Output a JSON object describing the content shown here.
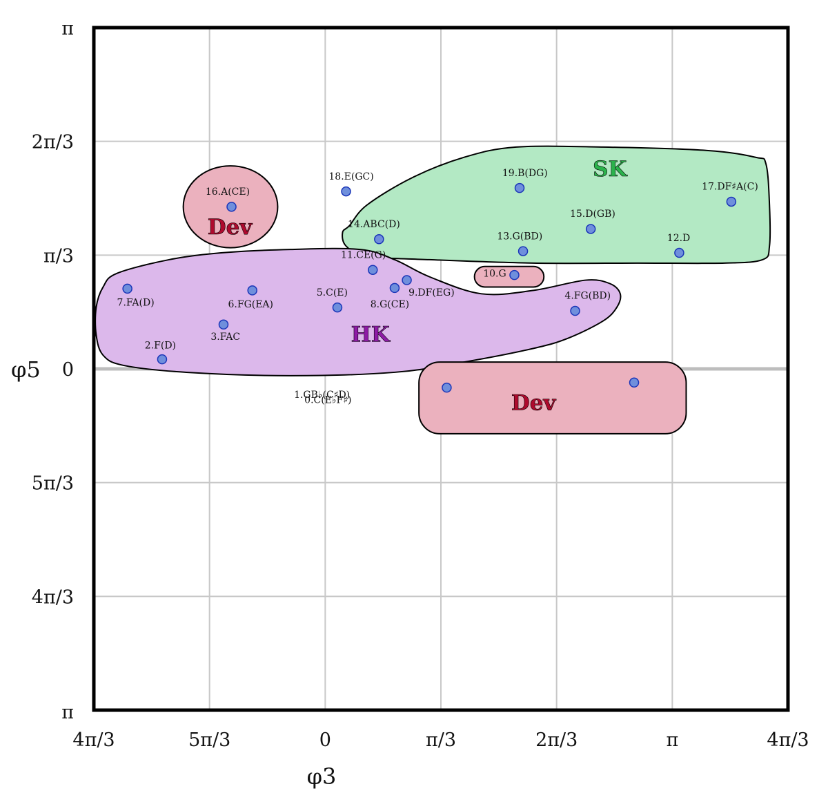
{
  "chart_data": {
    "type": "scatter",
    "xlabel": "φ3",
    "ylabel": "φ5",
    "x_ticks": [
      {
        "value": -0.6667,
        "label": "4π/3"
      },
      {
        "value": -0.3333,
        "label": "5π/3"
      },
      {
        "value": 0,
        "label": "0"
      },
      {
        "value": 0.3333,
        "label": "π/3"
      },
      {
        "value": 0.6667,
        "label": "2π/3"
      },
      {
        "value": 1,
        "label": "π"
      },
      {
        "value": 1.3333,
        "label": "4π/3"
      }
    ],
    "y_ticks": [
      {
        "value": 1,
        "label": "π"
      },
      {
        "value": 0.6667,
        "label": "2π/3"
      },
      {
        "value": 0.3333,
        "label": "π/3"
      },
      {
        "value": 0,
        "label": "0"
      },
      {
        "value": -0.3333,
        "label": "5π/3"
      },
      {
        "value": -0.6667,
        "label": "4π/3"
      },
      {
        "value": -1,
        "label": "π"
      }
    ],
    "xlim": [
      -0.6667,
      1.3333
    ],
    "ylim": [
      -1,
      1
    ],
    "grid": true,
    "point_color": "#6f8fdc",
    "points": [
      {
        "label": "0.C(E♭F♯)",
        "x": 0.35,
        "y": -0.055,
        "lx": -0.06,
        "ly": -0.1
      },
      {
        "label": "1.GB♭(C♯D)",
        "x": 0.89,
        "y": -0.04,
        "lx": -0.09,
        "ly": -0.085
      },
      {
        "label": "2.F(D)",
        "x": -0.47,
        "y": 0.028,
        "lx": -0.52,
        "ly": 0.06
      },
      {
        "label": "3.FAC",
        "x": -0.293,
        "y": 0.13,
        "lx": -0.33,
        "ly": 0.085
      },
      {
        "label": "4.FG(BD)",
        "x": 0.72,
        "y": 0.17,
        "lx": 0.69,
        "ly": 0.205
      },
      {
        "label": "5.C(E)",
        "x": 0.035,
        "y": 0.18,
        "lx": -0.025,
        "ly": 0.215
      },
      {
        "label": "6.FG(EA)",
        "x": -0.21,
        "y": 0.23,
        "lx": -0.28,
        "ly": 0.18
      },
      {
        "label": "7.FA(D)",
        "x": -0.57,
        "y": 0.235,
        "lx": -0.6,
        "ly": 0.185
      },
      {
        "label": "8.G(CE)",
        "x": 0.2,
        "y": 0.237,
        "lx": 0.13,
        "ly": 0.18
      },
      {
        "label": "9.DF(EG)",
        "x": 0.235,
        "y": 0.26,
        "lx": 0.24,
        "ly": 0.215
      },
      {
        "label": "10.G",
        "x": 0.545,
        "y": 0.275,
        "lx": 0.455,
        "ly": 0.27
      },
      {
        "label": "11.CE(G)",
        "x": 0.137,
        "y": 0.29,
        "lx": 0.045,
        "ly": 0.325
      },
      {
        "label": "12.D",
        "x": 1.02,
        "y": 0.34,
        "lx": 0.985,
        "ly": 0.375
      },
      {
        "label": "13.G(BD)",
        "x": 0.57,
        "y": 0.345,
        "lx": 0.495,
        "ly": 0.38
      },
      {
        "label": "14.ABC(D)",
        "x": 0.155,
        "y": 0.38,
        "lx": 0.065,
        "ly": 0.415
      },
      {
        "label": "15.D(GB)",
        "x": 0.765,
        "y": 0.41,
        "lx": 0.705,
        "ly": 0.445
      },
      {
        "label": "16.A(CE)",
        "x": -0.27,
        "y": 0.475,
        "lx": -0.345,
        "ly": 0.51
      },
      {
        "label": "17.DF♯A(C)",
        "x": 1.17,
        "y": 0.49,
        "lx": 1.085,
        "ly": 0.525
      },
      {
        "label": "18.E(GC)",
        "x": 0.06,
        "y": 0.52,
        "lx": 0.01,
        "ly": 0.555
      },
      {
        "label": "19.B(DG)",
        "x": 0.56,
        "y": 0.53,
        "lx": 0.51,
        "ly": 0.565
      }
    ],
    "regions": [
      {
        "label": "SK",
        "color": "#b3e9c4",
        "text_color": "#2bb24c",
        "lx": 0.82,
        "ly": 0.565,
        "path": [
          [
            0.07,
            0.42
          ],
          [
            0.05,
            0.4
          ],
          [
            0.06,
            0.36
          ],
          [
            0.12,
            0.33
          ],
          [
            0.3,
            0.32
          ],
          [
            0.6,
            0.31
          ],
          [
            0.9,
            0.31
          ],
          [
            1.15,
            0.31
          ],
          [
            1.26,
            0.32
          ],
          [
            1.28,
            0.36
          ],
          [
            1.28,
            0.48
          ],
          [
            1.27,
            0.6
          ],
          [
            1.24,
            0.62
          ],
          [
            1.1,
            0.64
          ],
          [
            0.8,
            0.65
          ],
          [
            0.55,
            0.65
          ],
          [
            0.4,
            0.62
          ],
          [
            0.25,
            0.56
          ],
          [
            0.12,
            0.48
          ]
        ]
      },
      {
        "label": "HK",
        "color": "#dcb8eb",
        "text_color": "#8e1ba6",
        "lx": 0.13,
        "ly": 0.08,
        "path": [
          [
            -0.6,
            0.28
          ],
          [
            -0.64,
            0.24
          ],
          [
            -0.66,
            0.18
          ],
          [
            -0.66,
            0.1
          ],
          [
            -0.64,
            0.04
          ],
          [
            -0.58,
            0.01
          ],
          [
            -0.4,
            -0.01
          ],
          [
            -0.1,
            -0.02
          ],
          [
            0.2,
            -0.01
          ],
          [
            0.4,
            0.02
          ],
          [
            0.6,
            0.06
          ],
          [
            0.7,
            0.09
          ],
          [
            0.8,
            0.14
          ],
          [
            0.84,
            0.18
          ],
          [
            0.85,
            0.22
          ],
          [
            0.82,
            0.25
          ],
          [
            0.75,
            0.26
          ],
          [
            0.6,
            0.23
          ],
          [
            0.45,
            0.22
          ],
          [
            0.3,
            0.27
          ],
          [
            0.2,
            0.32
          ],
          [
            0.1,
            0.35
          ],
          [
            -0.1,
            0.35
          ],
          [
            -0.3,
            0.34
          ],
          [
            -0.45,
            0.32
          ]
        ]
      },
      {
        "label": "Dev",
        "color": "#ebb1be",
        "text_color": "#ae0a2e",
        "lx": -0.275,
        "ly": 0.395,
        "shape": "ellipse",
        "cx": -0.273,
        "cy": 0.475,
        "rx": 0.136,
        "ry": 0.12
      },
      {
        "label": "",
        "color": "#ebb1be",
        "text_color": "#ae0a2e",
        "shape": "rect",
        "x0": 0.43,
        "y0": 0.24,
        "x1": 0.63,
        "y1": 0.3,
        "r": 0.03
      },
      {
        "label": "Dev",
        "color": "#ebb1be",
        "text_color": "#ae0a2e",
        "lx": 0.6,
        "ly": -0.12,
        "shape": "rect",
        "x0": 0.27,
        "y0": -0.19,
        "x1": 1.04,
        "y1": 0.02,
        "r": 0.06
      }
    ]
  }
}
